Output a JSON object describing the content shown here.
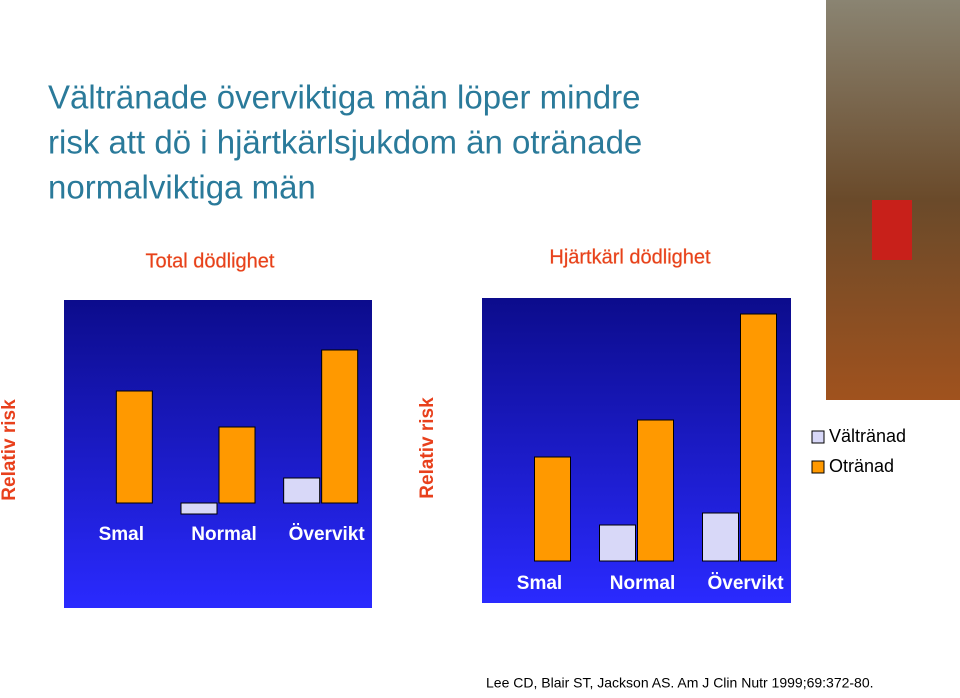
{
  "slide": {
    "title": [
      "Vältränade överviktiga män löper mindre",
      "risk att dö i hjärtkärlsjukdom än otränade",
      "normalviktiga män"
    ],
    "citation": "Lee CD, Blair ST, Jackson AS. Am J Clin Nutr 1999;69:372-80."
  },
  "chart_data": [
    {
      "type": "bar",
      "title": "Total dödlighet",
      "y_label": "Relativ risk",
      "categories": [
        "Smal",
        "Normal",
        "Övervikt"
      ],
      "series": [
        {
          "color": "#d8d8f8",
          "values": [
            null,
            -0.11,
            0.25
          ]
        },
        {
          "color": "#ff9900",
          "values": [
            1.12,
            0.76,
            1.53
          ]
        }
      ],
      "ylim": [
        -1.05,
        2.03
      ]
    },
    {
      "type": "bar",
      "title": "Hjärtkärl dödlighet",
      "y_label": "Relativ risk",
      "categories": [
        "Smal",
        "Normal",
        "Övervikt"
      ],
      "series": [
        {
          "name": "Vältränad",
          "color": "#d8d8f8",
          "values": [
            null,
            0.36,
            0.48
          ]
        },
        {
          "name": "Otränad",
          "color": "#ff9900",
          "values": [
            1.04,
            1.41,
            2.47
          ]
        }
      ],
      "ylim": [
        -0.42,
        2.63
      ]
    }
  ]
}
